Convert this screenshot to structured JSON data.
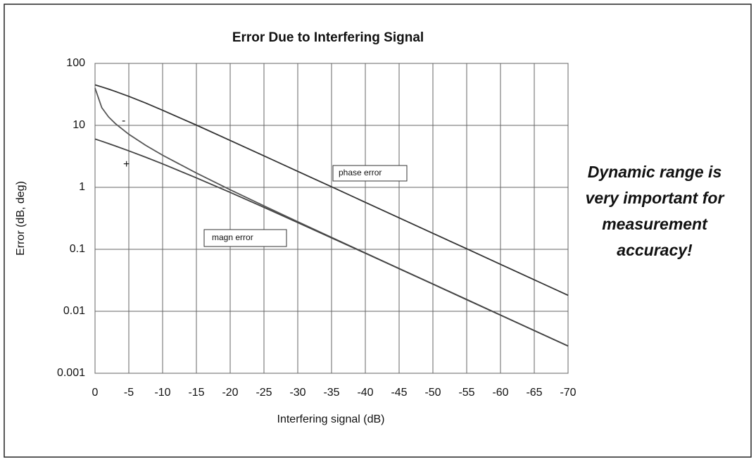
{
  "chart_data": {
    "type": "line",
    "title": "Error Due to Interfering Signal",
    "xlabel": "Interfering signal (dB)",
    "ylabel": "Error (dB, deg)",
    "x": [
      0,
      -1,
      -2,
      -3,
      -5,
      -7.5,
      -10,
      -15,
      -20,
      -25,
      -30,
      -35,
      -40,
      -45,
      -50,
      -55,
      -60,
      -65,
      -70
    ],
    "series": [
      {
        "name": "phase error",
        "color": "#333333",
        "values": [
          45,
          41.7,
          38.5,
          35.3,
          29.4,
          22.9,
          17.5,
          10.1,
          5.71,
          3.22,
          1.81,
          1.02,
          0.573,
          0.322,
          0.181,
          0.102,
          0.0573,
          0.0322,
          0.0181
        ]
      },
      {
        "name": "-",
        "color": "#555555",
        "values": [
          40,
          19.3,
          13.7,
          10.7,
          7.18,
          4.76,
          3.3,
          1.7,
          0.915,
          0.502,
          0.279,
          0.156,
          0.0873,
          0.049,
          0.0276,
          0.0155,
          0.00869,
          0.00489,
          0.00275
        ]
      },
      {
        "name": "+",
        "color": "#444444",
        "values": [
          6.02,
          5.54,
          5.08,
          4.65,
          3.88,
          3.06,
          2.39,
          1.42,
          0.828,
          0.475,
          0.27,
          0.153,
          0.0864,
          0.0487,
          0.0274,
          0.0154,
          0.00868,
          0.00488,
          0.00275
        ]
      }
    ],
    "annotations": [
      "magn error"
    ],
    "side_note": [
      "Dynamic range is",
      "very important for",
      "measurement",
      "accuracy!"
    ],
    "xlim": [
      0,
      -70
    ],
    "xticks": [
      0,
      -5,
      -10,
      -15,
      -20,
      -25,
      -30,
      -35,
      -40,
      -45,
      -50,
      -55,
      -60,
      -65,
      -70
    ],
    "ylim": [
      0.001,
      100
    ],
    "yticks": [
      0.001,
      0.01,
      0.1,
      1,
      10,
      100
    ],
    "ylog": true,
    "grid": true,
    "legend": false
  }
}
